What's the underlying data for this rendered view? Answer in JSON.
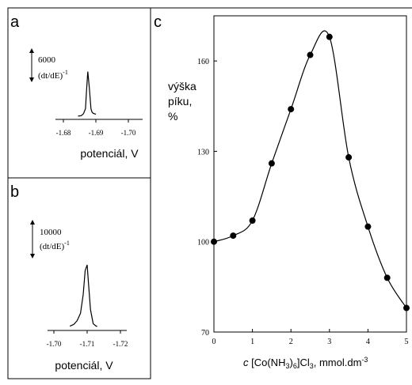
{
  "panels": {
    "a": {
      "letter": "a",
      "scale_value": "6000",
      "scale_unit": "(dt/dE)",
      "scale_exp": "-1",
      "ticks": [
        "-1.68",
        "-1.69",
        "-1.70"
      ],
      "xlabel": "potenciál, V"
    },
    "b": {
      "letter": "b",
      "scale_value": "10000",
      "scale_unit": "(dt/dE)",
      "scale_exp": "-1",
      "ticks": [
        "-1.70",
        "-1.71",
        "-1.72"
      ],
      "xlabel": "potenciál, V"
    },
    "c": {
      "letter": "c",
      "ylabel_lines": [
        "výška",
        "píku,",
        "%"
      ],
      "xlabel_pre": "c",
      "xlabel_main": "[Co(NH",
      "xlabel_sub1": "3",
      "xlabel_mid": ")",
      "xlabel_sub2": "6",
      "xlabel_post": "]Cl",
      "xlabel_sub3": "3",
      "xlabel_tail": ", mmol.dm",
      "xlabel_sup": "-3"
    }
  },
  "chart_data": [
    {
      "type": "line",
      "panel": "a",
      "xlabel": "potenciál, V",
      "ylabel": "(dt/dE)-1",
      "xticks": [
        -1.68,
        -1.69,
        -1.7
      ],
      "xlim": [
        -1.68,
        -1.7
      ],
      "scale_bar": 6000,
      "series": [
        {
          "x": [
            -1.6845,
            -1.6855,
            -1.6862,
            -1.6868,
            -1.6871,
            -1.6875,
            -1.688,
            -1.6885,
            -1.6888,
            -1.6891,
            -1.6895,
            -1.69
          ],
          "values": [
            150,
            250,
            600,
            1500,
            4500,
            8200,
            5200,
            1500,
            900,
            700,
            600,
            500
          ]
        }
      ]
    },
    {
      "type": "line",
      "panel": "b",
      "xlabel": "potenciál, V",
      "ylabel": "(dt/dE)-1",
      "xticks": [
        -1.7,
        -1.71,
        -1.72
      ],
      "xlim": [
        -1.7,
        -1.72
      ],
      "scale_bar": 10000,
      "series": [
        {
          "x": [
            -1.7048,
            -1.706,
            -1.707,
            -1.708,
            -1.7088,
            -1.7094,
            -1.71,
            -1.7104,
            -1.711,
            -1.7118,
            -1.7126,
            -1.713
          ],
          "values": [
            500,
            1000,
            2000,
            4000,
            9000,
            15500,
            17000,
            12000,
            5000,
            1200,
            600,
            400
          ]
        }
      ]
    },
    {
      "type": "line",
      "panel": "c",
      "xlabel": "c [Co(NH3)6]Cl3, mmol.dm-3",
      "ylabel": "výška píku, %",
      "xlim": [
        0,
        5
      ],
      "ylim": [
        70,
        175
      ],
      "xticks": [
        0,
        1,
        2,
        3,
        4,
        5
      ],
      "yticks": [
        70,
        100,
        130,
        160
      ],
      "series": [
        {
          "x": [
            0,
            0.5,
            1,
            1.5,
            2,
            2.5,
            3,
            3.5,
            4,
            4.5,
            5
          ],
          "values": [
            100,
            102,
            107,
            126,
            144,
            162,
            168,
            128,
            105,
            88,
            78
          ]
        }
      ]
    }
  ]
}
